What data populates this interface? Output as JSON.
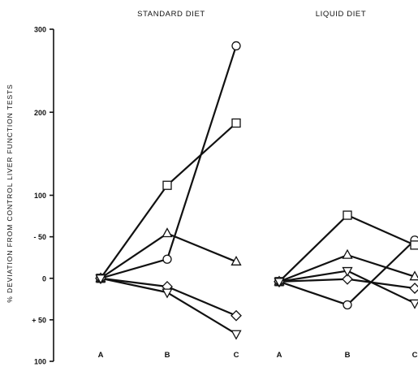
{
  "chart_data": {
    "type": "line",
    "ylabel": "% DEVIATION FROM CONTROL LIVER FUNCTION TESTS",
    "y_ticks": [
      {
        "value": 300,
        "label": "300"
      },
      {
        "value": 200,
        "label": "200"
      },
      {
        "value": 100,
        "label": "100"
      },
      {
        "value": 50,
        "label": "- 50"
      },
      {
        "value": 0,
        "label": "0"
      },
      {
        "value": -50,
        "label": "+ 50"
      },
      {
        "value": -100,
        "label": "100"
      }
    ],
    "ylim": [
      -100,
      300
    ],
    "categories": [
      "A",
      "B",
      "C"
    ],
    "grid": false,
    "panels": [
      {
        "title": "STANDARD DIET",
        "series": [
          {
            "marker": "circle",
            "values": [
              0,
              23,
              280
            ]
          },
          {
            "marker": "square",
            "values": [
              0,
              112,
              187
            ]
          },
          {
            "marker": "triangle-up",
            "values": [
              0,
              54,
              20
            ]
          },
          {
            "marker": "diamond",
            "values": [
              0,
              -10,
              -45
            ]
          },
          {
            "marker": "triangle-down",
            "values": [
              0,
              -17,
              -67
            ]
          }
        ]
      },
      {
        "title": "LIQUID DIET",
        "series": [
          {
            "marker": "circle",
            "values": [
              -4,
              -32,
              46
            ]
          },
          {
            "marker": "square",
            "values": [
              -4,
              76,
              40
            ]
          },
          {
            "marker": "triangle-up",
            "values": [
              -4,
              28,
              2
            ]
          },
          {
            "marker": "diamond",
            "values": [
              -4,
              -1,
              -12
            ]
          },
          {
            "marker": "triangle-down",
            "values": [
              -4,
              9,
              -30
            ]
          }
        ]
      }
    ]
  }
}
